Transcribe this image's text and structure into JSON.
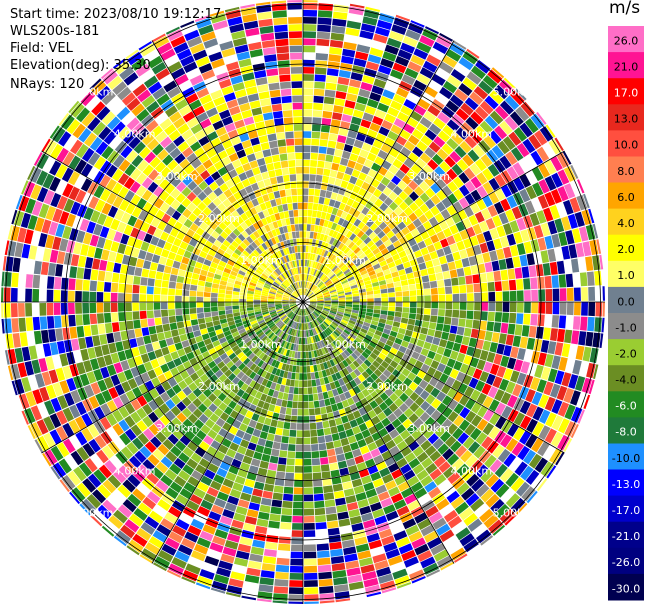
{
  "info": {
    "start_time": "Start time: 2023/08/10 19:12:17",
    "instrument": "WLS200s-181",
    "field": "Field: VEL",
    "elevation": "Elevation(deg): 35.30",
    "nrays": "NRays: 120"
  },
  "chart_data": {
    "type": "heatmap",
    "subtype": "polar-ppi",
    "field": "VEL",
    "units": "m/s",
    "nrays": 120,
    "elevation_deg": 35.3,
    "range_rings_km": [
      "1.00km",
      "2.00km",
      "3.00km",
      "4.00km",
      "5.00km"
    ],
    "radial_lines_deg": [
      0,
      30,
      60,
      90,
      120,
      150,
      180,
      210,
      240,
      270,
      300,
      330
    ],
    "colorbar": {
      "label": "m/s",
      "ticks": [
        "26.0",
        "21.0",
        "17.0",
        "13.0",
        "10.0",
        "8.0",
        "6.0",
        "4.0",
        "2.0",
        "1.0",
        "0.0",
        "-1.0",
        "-2.0",
        "-4.0",
        "-6.0",
        "-8.0",
        "-10.0",
        "-13.0",
        "-17.0",
        "-21.0",
        "-26.0",
        "-30.0"
      ],
      "colors": [
        "#ff6ec7",
        "#ff1493",
        "#ff0000",
        "#e8281e",
        "#ff4f3f",
        "#ff7f50",
        "#ffa500",
        "#ffd21e",
        "#ffff00",
        "#ffff66",
        "#708090",
        "#8c8c8c",
        "#9acd32",
        "#6b8e23",
        "#228b22",
        "#1f7a3a",
        "#1e90ff",
        "#0000ff",
        "#0000cd",
        "#00008b",
        "#000080",
        "#000050"
      ]
    }
  }
}
